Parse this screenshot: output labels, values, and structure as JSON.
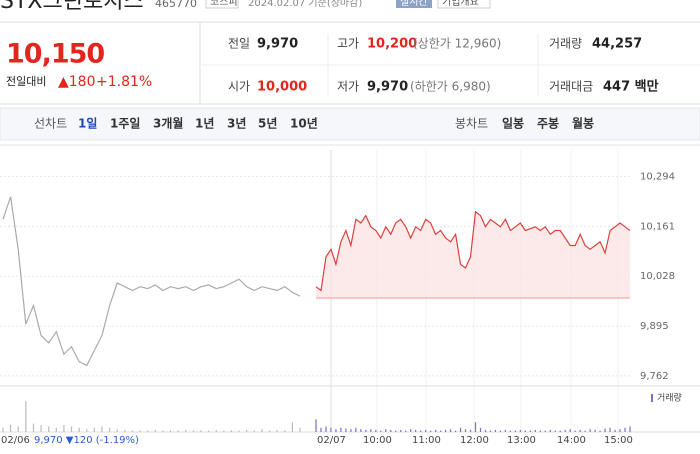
{
  "header": {
    "name": "STX그린로지스",
    "code": "465770",
    "market": "코스피",
    "date": "2024.02.07 기준(장마감)",
    "realtime": "실시간",
    "company": "기업개요"
  },
  "price": {
    "current": "10,150",
    "change_label": "전일대비",
    "change": "▲180",
    "rate": "+1.81%"
  },
  "stats": [
    [
      {
        "label": "전일",
        "value": "9,970"
      },
      {
        "label": "고가",
        "value": "10,200",
        "note": "(상한가 12,960)"
      },
      {
        "label": "거래량",
        "value": "44,257"
      }
    ],
    [
      {
        "label": "시가",
        "value": "10,000"
      },
      {
        "label": "저가",
        "value": "9,970",
        "note": "(하한가 6,980)"
      },
      {
        "label": "거래대금",
        "value": "447 백만"
      }
    ]
  ],
  "tabs": {
    "line_label": "선차트",
    "line": [
      "1일",
      "1주일",
      "3개월",
      "1년",
      "3년",
      "5년",
      "10년"
    ],
    "candle_label": "봉차트",
    "candle": [
      "일봉",
      "주봉",
      "월봉"
    ]
  },
  "footer": {
    "date": "02/06",
    "info": "9,970 ▼120 (-1.19%)"
  },
  "chart_data": {
    "type": "line",
    "ylim": [
      9735,
      10365
    ],
    "yticks": [
      {
        "value": 10294,
        "label": "10,294"
      },
      {
        "value": 10161,
        "label": "10,161"
      },
      {
        "value": 10028,
        "label": "10,028"
      },
      {
        "value": 9895,
        "label": "9,895"
      },
      {
        "value": 9762,
        "label": "9,762"
      }
    ],
    "x_labels": [
      "02/06",
      "02/07",
      "10:00",
      "11:00",
      "12:00",
      "13:00",
      "14:00",
      "15:00"
    ],
    "baseline": 9970,
    "volume_name": "거래량",
    "vlim": [
      0,
      3000
    ],
    "series": [
      {
        "color": "#aaaaaa",
        "values": [
          10180,
          10240,
          10100,
          9900,
          9950,
          9870,
          9850,
          9880,
          9820,
          9840,
          9800,
          9790,
          9830,
          9870,
          9950,
          10010,
          10000,
          9990,
          10000,
          9995,
          10005,
          9990,
          10000,
          9995,
          10000,
          9990,
          10000,
          10005,
          9995,
          10000,
          10010,
          10020,
          10000,
          9990,
          10000,
          9995,
          9990,
          10000,
          9985,
          9975
        ],
        "volume": [
          300,
          500,
          400,
          2200,
          600,
          500,
          400,
          300,
          500,
          400,
          300,
          200,
          300,
          400,
          300,
          200,
          150,
          100,
          120,
          100,
          150,
          100,
          120,
          100,
          150,
          100,
          120,
          100,
          150,
          100,
          120,
          100,
          150,
          100,
          200,
          100,
          150,
          100,
          700,
          300
        ]
      },
      {
        "color": "#e03e3e",
        "values": [
          10000,
          9990,
          10080,
          10100,
          10060,
          10120,
          10150,
          10110,
          10180,
          10170,
          10190,
          10160,
          10150,
          10130,
          10160,
          10140,
          10170,
          10180,
          10160,
          10130,
          10160,
          10150,
          10180,
          10170,
          10140,
          10150,
          10130,
          10120,
          10140,
          10060,
          10050,
          10080,
          10200,
          10190,
          10160,
          10180,
          10170,
          10160,
          10180,
          10150,
          10160,
          10170,
          10150,
          10155,
          10160,
          10150,
          10160,
          10140,
          10150,
          10150,
          10130,
          10110,
          10110,
          10140,
          10110,
          10100,
          10110,
          10120,
          10090,
          10150,
          10160,
          10170,
          10160,
          10150
        ],
        "volume": [
          900,
          300,
          400,
          300,
          200,
          300,
          250,
          200,
          300,
          200,
          150,
          200,
          150,
          100,
          200,
          150,
          100,
          150,
          100,
          200,
          150,
          100,
          150,
          100,
          150,
          100,
          150,
          200,
          100,
          300,
          200,
          150,
          700,
          300,
          150,
          100,
          150,
          100,
          150,
          100,
          100,
          150,
          100,
          100,
          150,
          100,
          100,
          150,
          100,
          100,
          150,
          200,
          100,
          150,
          100,
          200,
          150,
          100,
          250,
          300,
          150,
          200,
          300,
          400
        ]
      }
    ]
  }
}
